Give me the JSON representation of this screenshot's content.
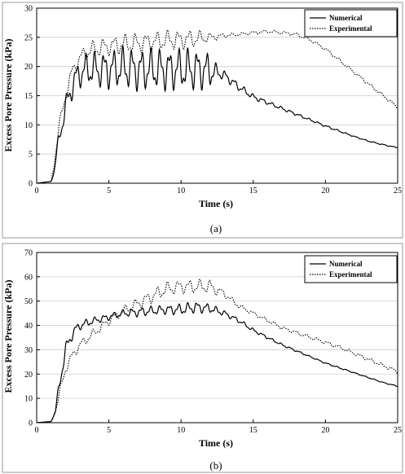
{
  "chart_data": [
    {
      "type": "line",
      "panel_label": "(a)",
      "xlabel": "Time (s)",
      "ylabel": "Excess Pore Pressure (kPa)",
      "xlim": [
        0,
        25
      ],
      "ylim": [
        0,
        30
      ],
      "xticks": [
        0,
        5,
        10,
        15,
        20,
        25
      ],
      "yticks": [
        0,
        5,
        10,
        15,
        20,
        25,
        30
      ],
      "grid": true,
      "legend": "top-right",
      "series": [
        {
          "name": "Numerical",
          "style": "solid",
          "color": "#000000",
          "x": [
            0,
            1,
            1.2,
            1.5,
            2,
            2.5,
            3,
            3.5,
            4,
            5,
            6,
            7,
            8,
            9,
            10,
            11,
            12,
            12.5,
            13,
            14,
            15,
            16,
            17,
            18,
            19,
            20,
            21,
            22,
            23,
            24,
            25
          ],
          "y": [
            0,
            0.3,
            2,
            7,
            13,
            17,
            19,
            19.5,
            19.5,
            19.5,
            19.8,
            19.5,
            19.5,
            19.5,
            19.5,
            19.5,
            19.3,
            19,
            18.5,
            16.5,
            14.8,
            13.8,
            12.8,
            11.8,
            10.8,
            9.8,
            8.9,
            8.0,
            7.2,
            6.6,
            6.1
          ],
          "osc": [
            0,
            0,
            0.5,
            1.2,
            2,
            2.5,
            2.8,
            3.0,
            3.2,
            3.5,
            3.8,
            3.8,
            3.8,
            3.8,
            3.8,
            3.8,
            3.2,
            1.2,
            0.9,
            0.7,
            0.5,
            0.35,
            0.3,
            0.25,
            0.2,
            0.2,
            0.15,
            0.1,
            0.1,
            0.1,
            0.05
          ]
        },
        {
          "name": "Experimental",
          "style": "dotted",
          "color": "#000000",
          "x": [
            0,
            1,
            1.2,
            1.5,
            2,
            2.5,
            3,
            3.5,
            4,
            5,
            6,
            7,
            8,
            9,
            10,
            11,
            12,
            13,
            14,
            15,
            16,
            17,
            18,
            19,
            20,
            21,
            22,
            23,
            24,
            25
          ],
          "y": [
            0,
            0.3,
            3,
            9,
            15,
            19.5,
            21.5,
            22.5,
            23,
            23.5,
            23.8,
            24,
            24.2,
            24.5,
            24.6,
            24.8,
            25,
            25.3,
            25.5,
            25.8,
            26,
            25.8,
            25.5,
            24.5,
            23,
            21,
            19,
            17,
            15,
            13
          ],
          "osc": [
            0,
            0,
            0.5,
            1,
            1.2,
            1.2,
            1.3,
            1.5,
            1.6,
            1.7,
            1.8,
            1.8,
            1.8,
            1.8,
            1.8,
            1.6,
            0.8,
            0.4,
            0.3,
            0.3,
            0.3,
            0.3,
            0.3,
            0.3,
            0.3,
            0.3,
            0.3,
            0.3,
            0.3,
            0.3
          ]
        }
      ]
    },
    {
      "type": "line",
      "panel_label": "(b)",
      "xlabel": "Time (s)",
      "ylabel": "Excess Pore Pressure (kPa)",
      "xlim": [
        0,
        25
      ],
      "ylim": [
        0,
        70
      ],
      "xticks": [
        0,
        5,
        10,
        15,
        20,
        25
      ],
      "yticks": [
        0,
        10,
        20,
        30,
        40,
        50,
        60,
        70
      ],
      "grid": true,
      "legend": "top-right",
      "series": [
        {
          "name": "Numerical",
          "style": "solid",
          "color": "#000000",
          "x": [
            0,
            1,
            1.3,
            1.7,
            2,
            2.5,
            3,
            4,
            5,
            6,
            7,
            8,
            9,
            10,
            11,
            12,
            13,
            14,
            15,
            16,
            17,
            18,
            19,
            20,
            21,
            22,
            23,
            24,
            25
          ],
          "y": [
            0,
            0.5,
            5,
            20,
            30,
            37,
            40,
            42,
            43.5,
            45,
            45.5,
            46,
            46.5,
            46.5,
            47.5,
            47,
            45,
            42,
            38,
            35,
            32,
            29.5,
            27,
            24.5,
            22.5,
            20.5,
            18.5,
            16.5,
            15
          ],
          "osc": [
            0,
            0,
            1.5,
            3,
            3,
            2.5,
            2,
            1.5,
            1.5,
            1.5,
            2,
            2,
            2,
            2.5,
            2.5,
            2,
            1.2,
            1,
            0.8,
            0.6,
            0.5,
            0.4,
            0.3,
            0.3,
            0.3,
            0.2,
            0.2,
            0.2,
            0.2
          ]
        },
        {
          "name": "Experimental",
          "style": "dotted",
          "color": "#000000",
          "x": [
            0,
            1,
            1.3,
            1.7,
            2,
            2.5,
            3,
            4,
            5,
            6,
            7,
            8,
            9,
            10,
            11,
            12,
            13,
            14,
            15,
            16,
            17,
            18,
            19,
            20,
            21,
            22,
            23,
            24,
            25
          ],
          "y": [
            0,
            0.5,
            5,
            15,
            22,
            28,
            32,
            37,
            42,
            46,
            49,
            52,
            55,
            56,
            56,
            56,
            53,
            48,
            45,
            42,
            39,
            37,
            35,
            33,
            31,
            28.5,
            26,
            23.5,
            21
          ],
          "osc": [
            0,
            0,
            1.5,
            2,
            2,
            2,
            2,
            2,
            2,
            2,
            2.5,
            3,
            3,
            3,
            3,
            3,
            1.5,
            1,
            0.8,
            0.8,
            0.8,
            0.8,
            0.8,
            0.8,
            0.8,
            0.8,
            0.8,
            0.8,
            0.8
          ]
        }
      ]
    }
  ]
}
